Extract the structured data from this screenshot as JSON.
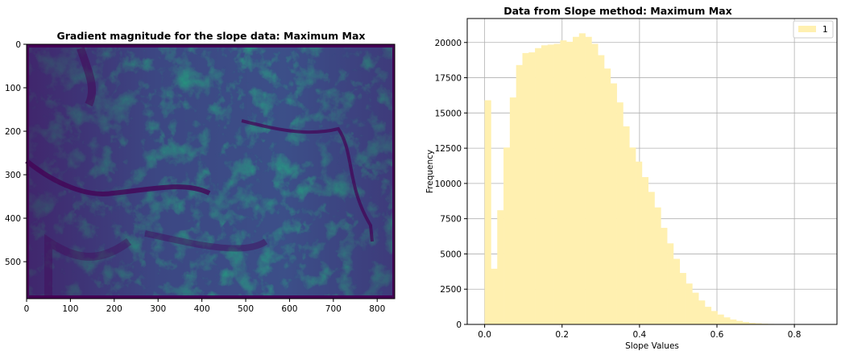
{
  "chart_data": [
    {
      "type": "heatmap",
      "title": "Gradient magnitude for the slope data: Maximum Max",
      "colormap": "viridis",
      "xlabel": "",
      "ylabel": "",
      "xlim": [
        0,
        840
      ],
      "ylim": [
        585,
        0
      ],
      "xticks": [
        0,
        100,
        200,
        300,
        400,
        500,
        600,
        700,
        800
      ],
      "yticks": [
        0,
        100,
        200,
        300,
        400,
        500
      ],
      "xtick_labels": [
        "0",
        "100",
        "200",
        "300",
        "400",
        "500",
        "600",
        "700",
        "800"
      ],
      "ytick_labels": [
        "0",
        "100",
        "200",
        "300",
        "400",
        "500"
      ]
    },
    {
      "type": "bar",
      "title": "Data from Slope method: Maximum Max",
      "xlabel": "Slope Values",
      "ylabel": "Frequency",
      "xlim": [
        -0.045,
        0.91
      ],
      "ylim": [
        0,
        21700
      ],
      "grid": true,
      "legend_position": "top-right",
      "bar_color": "#fff0b0",
      "bin_width": 0.01625,
      "series": [
        {
          "name": "1",
          "bin_starts": [
            0.0,
            0.01625,
            0.0325,
            0.04875,
            0.065,
            0.08125,
            0.0975,
            0.11375,
            0.13,
            0.14625,
            0.1625,
            0.17875,
            0.195,
            0.21125,
            0.2275,
            0.24375,
            0.26,
            0.27625,
            0.2925,
            0.30875,
            0.325,
            0.34125,
            0.3575,
            0.37375,
            0.39,
            0.40625,
            0.4225,
            0.43875,
            0.455,
            0.47125,
            0.4875,
            0.50375,
            0.52,
            0.53625,
            0.5525,
            0.56875,
            0.585,
            0.60125,
            0.6175,
            0.63375,
            0.65,
            0.66625,
            0.6825,
            0.69875,
            0.715,
            0.73125,
            0.7475,
            0.76375,
            0.78,
            0.79625,
            0.8125,
            0.82875
          ],
          "values": [
            15900,
            3950,
            8100,
            12550,
            16100,
            18400,
            19250,
            19300,
            19600,
            19800,
            19850,
            19900,
            20150,
            20050,
            20400,
            20650,
            20400,
            19900,
            19100,
            18150,
            17100,
            15750,
            14050,
            12550,
            11550,
            10450,
            9400,
            8300,
            6850,
            5750,
            4650,
            3650,
            2900,
            2250,
            1700,
            1250,
            950,
            700,
            500,
            350,
            250,
            170,
            110,
            80,
            50,
            35,
            25,
            15,
            10,
            8,
            5,
            3
          ]
        }
      ],
      "xticks": [
        0.0,
        0.2,
        0.4,
        0.6,
        0.8
      ],
      "yticks": [
        0,
        2500,
        5000,
        7500,
        10000,
        12500,
        15000,
        17500,
        20000
      ],
      "xtick_labels": [
        "0.0",
        "0.2",
        "0.4",
        "0.6",
        "0.8"
      ],
      "ytick_labels": [
        "0",
        "2500",
        "5000",
        "7500",
        "10000",
        "12500",
        "15000",
        "17500",
        "20000"
      ]
    }
  ]
}
